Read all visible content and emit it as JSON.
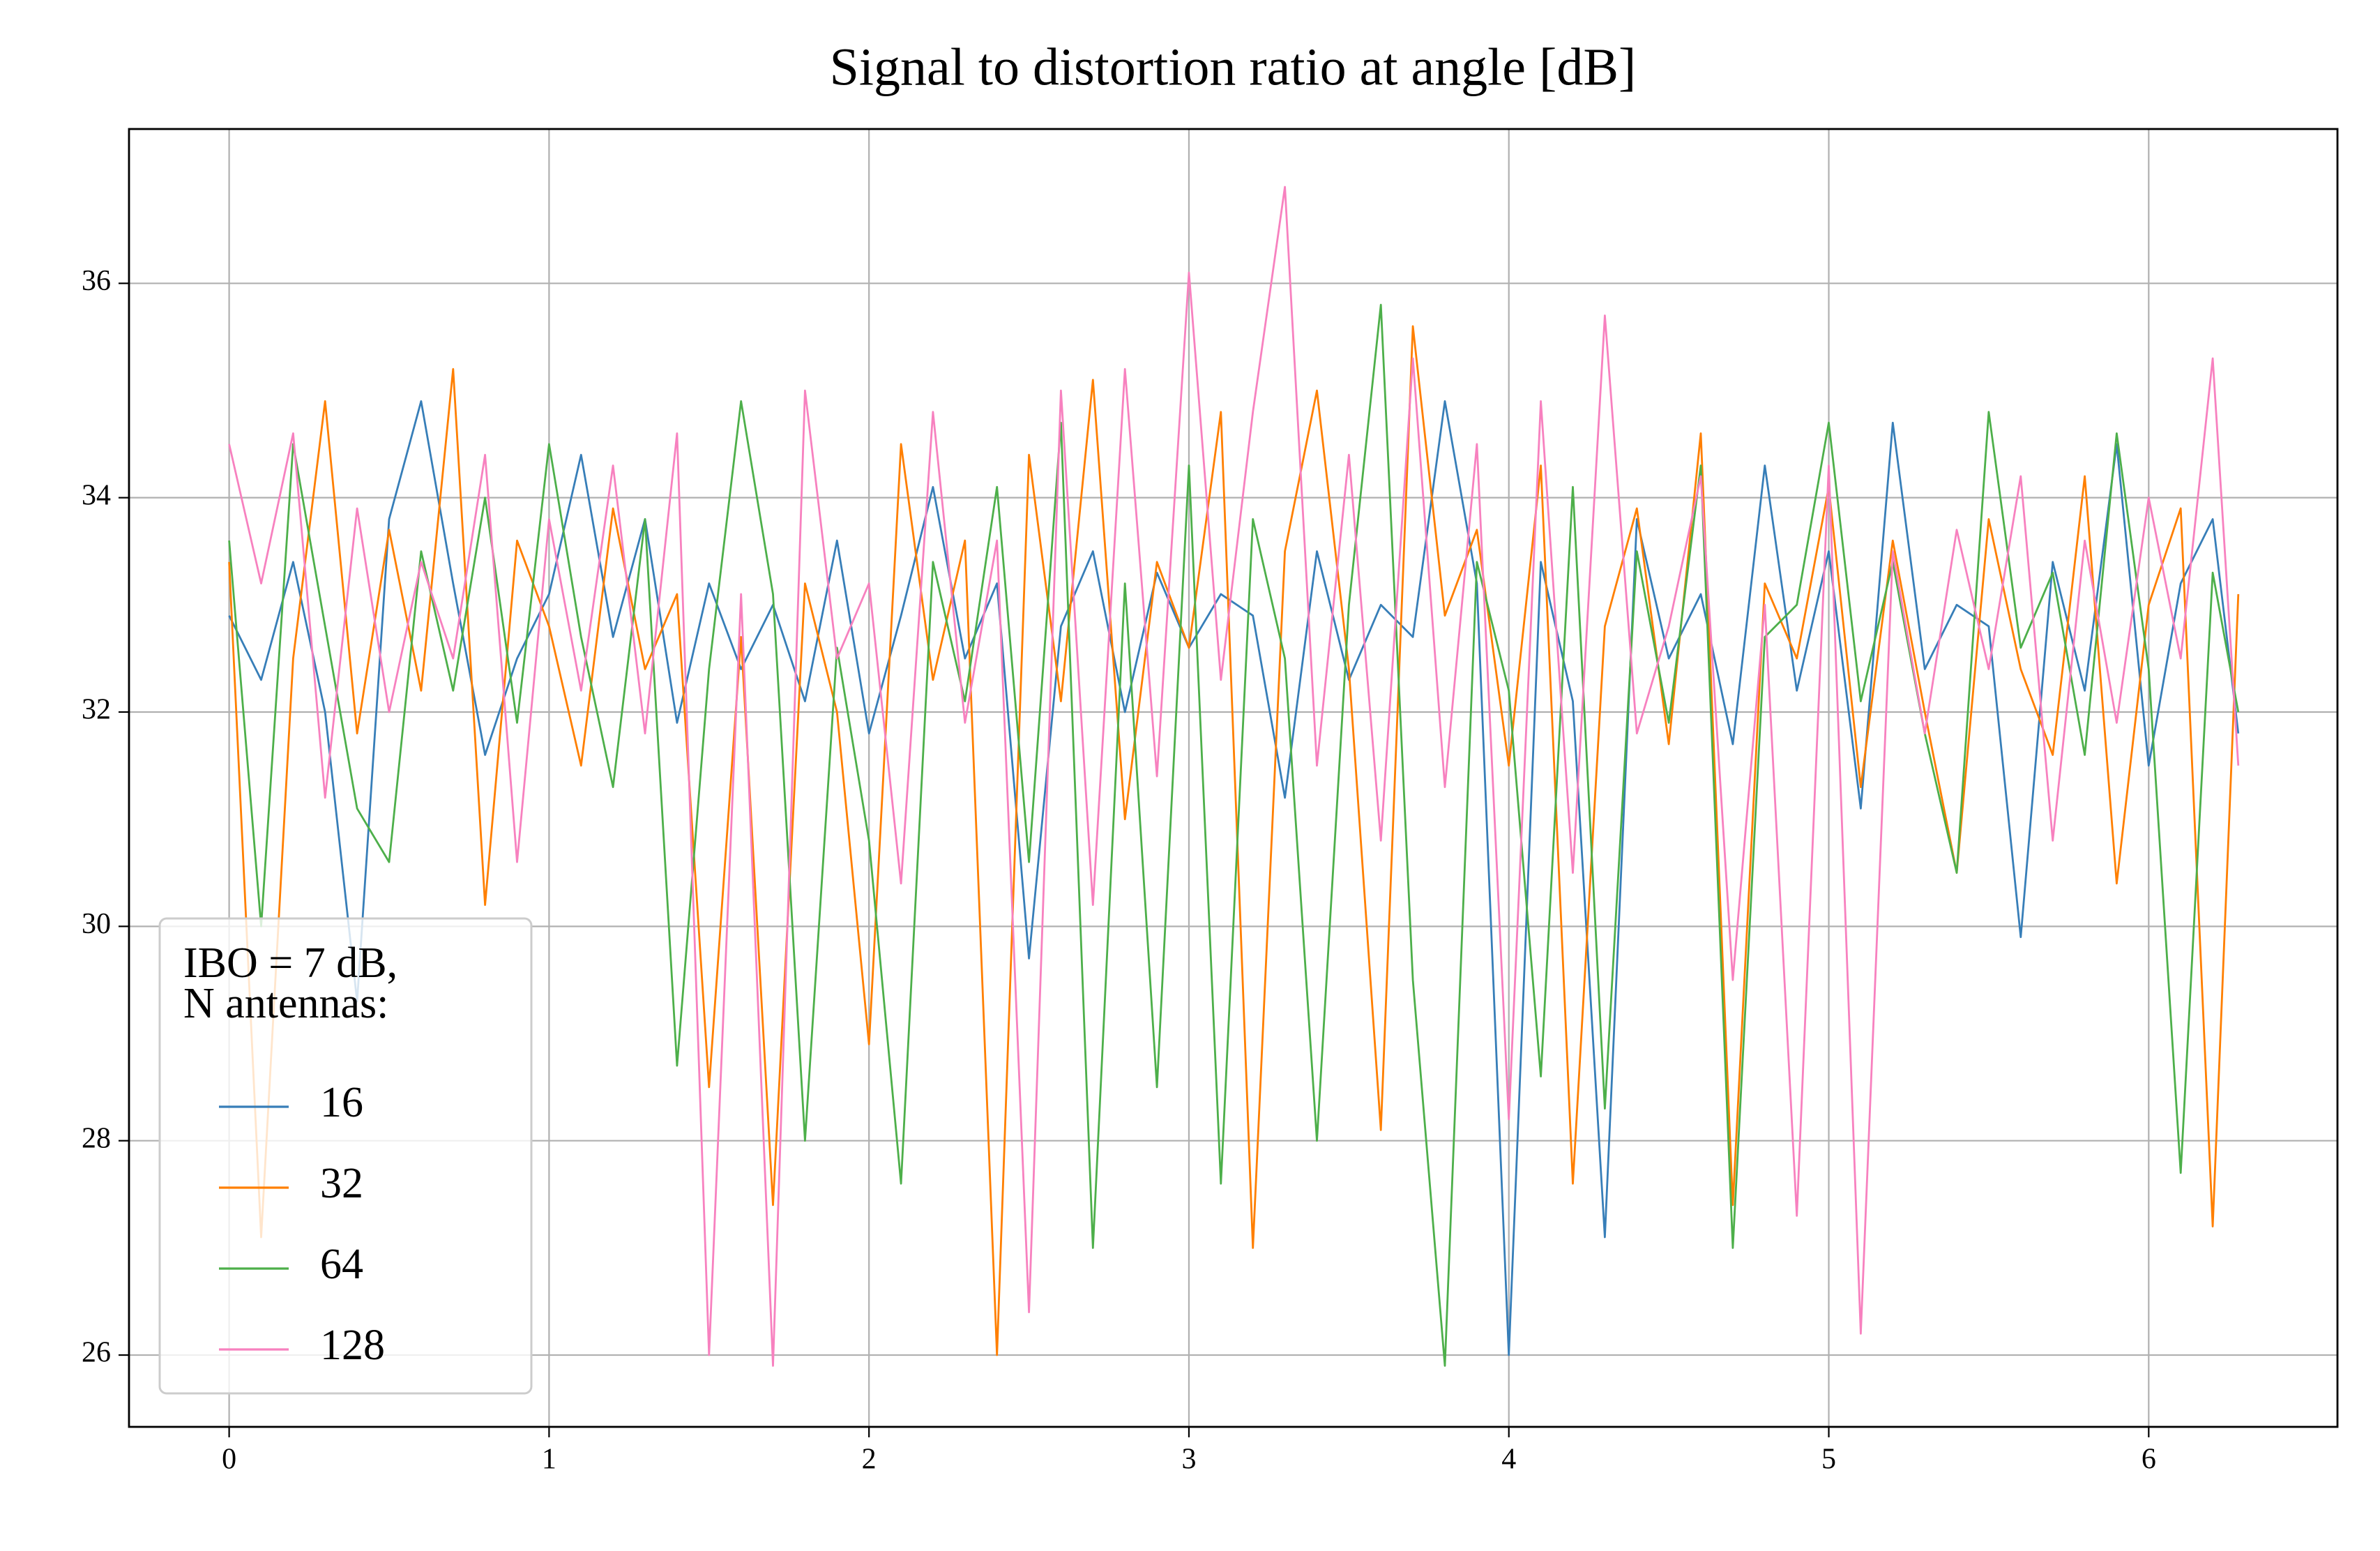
{
  "chart_data": {
    "type": "line",
    "title": "Signal to distortion ratio at angle [dB]",
    "legend_title": [
      "IBO = 7 dB,",
      "N antennas:"
    ],
    "legend_loc": "lower left",
    "grid": true,
    "xlim": [
      -0.313,
      6.59
    ],
    "ylim": [
      25.33,
      37.44
    ],
    "xticks": [
      0,
      1,
      2,
      3,
      4,
      5,
      6
    ],
    "yticks": [
      26,
      28,
      30,
      32,
      34,
      36
    ],
    "x": [
      0,
      0.1,
      0.2,
      0.3,
      0.4,
      0.5,
      0.6,
      0.7,
      0.8,
      0.9,
      1,
      1.1,
      1.2,
      1.3,
      1.4,
      1.5,
      1.6,
      1.7,
      1.8,
      1.9,
      2,
      2.1,
      2.2,
      2.3,
      2.4,
      2.5,
      2.6,
      2.7,
      2.8,
      2.9,
      3,
      3.1,
      3.2,
      3.3,
      3.4,
      3.5,
      3.6,
      3.7,
      3.8,
      3.9,
      4,
      4.1,
      4.2,
      4.3,
      4.4,
      4.5,
      4.6,
      4.7,
      4.8,
      4.9,
      5,
      5.1,
      5.2,
      5.3,
      5.4,
      5.5,
      5.6,
      5.7,
      5.8,
      5.9,
      6,
      6.1,
      6.2,
      6.28
    ],
    "series": [
      {
        "name": "16",
        "color": "#377eb8",
        "values": [
          32.9,
          32.3,
          33.4,
          32.0,
          29.3,
          33.8,
          34.9,
          33.2,
          31.6,
          32.5,
          33.1,
          34.4,
          32.7,
          33.8,
          31.9,
          33.2,
          32.4,
          33.0,
          32.1,
          33.6,
          31.8,
          32.9,
          34.1,
          32.5,
          33.2,
          29.7,
          32.8,
          33.5,
          32.0,
          33.3,
          32.6,
          33.1,
          32.9,
          31.2,
          33.5,
          32.3,
          33.0,
          32.7,
          34.9,
          33.2,
          26.0,
          33.4,
          32.1,
          27.1,
          33.8,
          32.5,
          33.1,
          31.7,
          34.3,
          32.2,
          33.5,
          31.1,
          34.7,
          32.4,
          33.0,
          32.8,
          29.9,
          33.4,
          32.2,
          34.5,
          31.5,
          33.2,
          33.8,
          31.8
        ]
      },
      {
        "name": "32",
        "color": "#ff7f00",
        "values": [
          33.4,
          27.1,
          32.5,
          34.9,
          31.8,
          33.7,
          32.2,
          35.2,
          30.2,
          33.6,
          32.8,
          31.5,
          33.9,
          32.4,
          33.1,
          28.5,
          32.7,
          27.4,
          33.2,
          32.0,
          28.9,
          34.5,
          32.3,
          33.6,
          26.0,
          34.4,
          32.1,
          35.1,
          31.0,
          33.4,
          32.6,
          34.8,
          27.0,
          33.5,
          35.0,
          32.4,
          28.1,
          35.6,
          32.9,
          33.7,
          31.5,
          34.3,
          27.6,
          32.8,
          33.9,
          31.7,
          34.6,
          27.4,
          33.2,
          32.5,
          34.1,
          31.3,
          33.6,
          32.0,
          30.5,
          33.8,
          32.4,
          31.6,
          34.2,
          30.4,
          33.0,
          33.9,
          27.2,
          33.1
        ]
      },
      {
        "name": "64",
        "color": "#4daf4a",
        "values": [
          33.6,
          30.0,
          34.5,
          32.8,
          31.1,
          30.6,
          33.5,
          32.2,
          34.0,
          31.9,
          34.5,
          32.7,
          31.3,
          33.8,
          28.7,
          32.4,
          34.9,
          33.1,
          28.0,
          32.6,
          30.8,
          27.6,
          33.4,
          32.1,
          34.1,
          30.6,
          34.7,
          27.0,
          33.2,
          28.5,
          34.3,
          27.6,
          33.8,
          32.5,
          28.0,
          33.0,
          35.8,
          29.5,
          25.9,
          33.4,
          32.2,
          28.6,
          34.1,
          28.3,
          33.5,
          31.9,
          34.3,
          27.0,
          32.7,
          33.0,
          34.7,
          32.1,
          33.4,
          31.8,
          30.5,
          34.8,
          32.6,
          33.3,
          31.6,
          34.6,
          32.4,
          27.7,
          33.3,
          32.0
        ]
      },
      {
        "name": "128",
        "color": "#f781bf",
        "values": [
          34.5,
          33.2,
          34.6,
          31.2,
          33.9,
          32.0,
          33.4,
          32.5,
          34.4,
          30.6,
          33.8,
          32.2,
          34.3,
          31.8,
          34.6,
          26.0,
          33.1,
          25.9,
          35.0,
          32.5,
          33.2,
          30.4,
          34.8,
          31.9,
          33.6,
          26.4,
          35.0,
          30.2,
          35.2,
          31.4,
          36.1,
          32.3,
          34.8,
          36.9,
          31.5,
          34.4,
          30.8,
          35.3,
          31.3,
          34.5,
          28.2,
          34.9,
          30.5,
          35.7,
          31.8,
          32.8,
          34.2,
          29.5,
          33.0,
          27.3,
          34.3,
          26.2,
          33.5,
          31.8,
          33.7,
          32.4,
          34.2,
          30.8,
          33.6,
          31.9,
          34.0,
          32.5,
          35.3,
          31.5
        ]
      }
    ]
  }
}
